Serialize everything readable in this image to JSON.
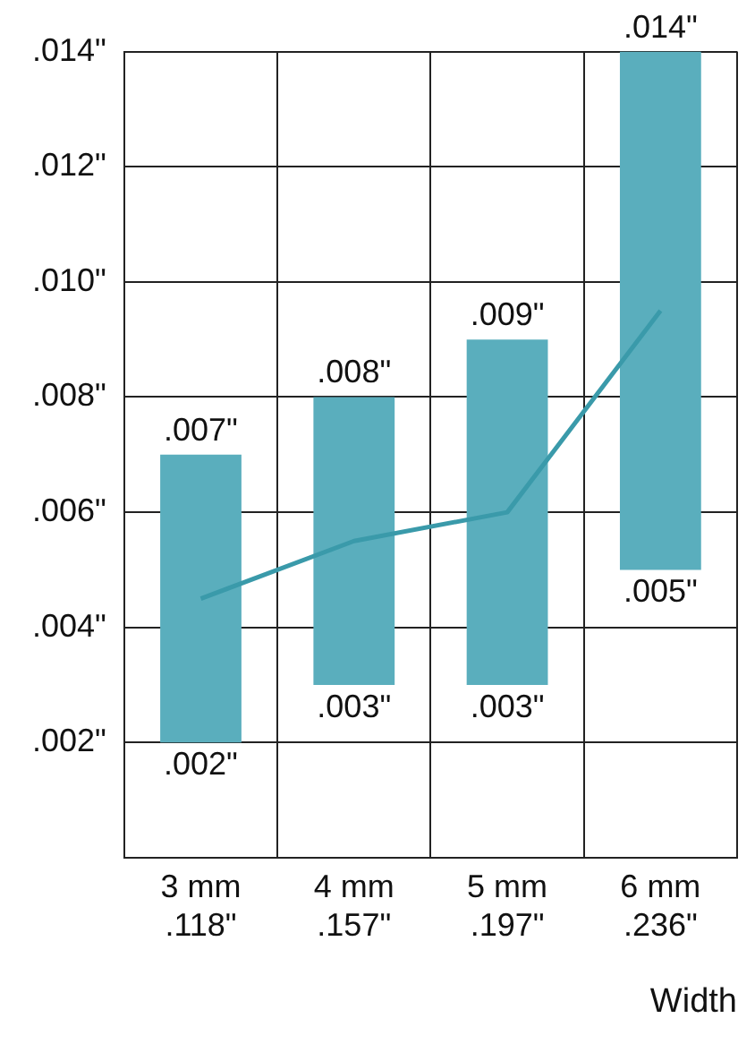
{
  "chart_data": {
    "type": "bar",
    "categories": [
      "3 mm\n.118\"",
      "4 mm\n.157\"",
      "5 mm\n.197\"",
      "6 mm\n.236\""
    ],
    "series": [
      {
        "color": "#5aaebd",
        "base": [
          0.002,
          0.003,
          0.003,
          0.005
        ],
        "values": [
          0.005,
          0.005,
          0.006,
          0.009
        ]
      },
      {
        "type": "line",
        "color": "#3a9aaa",
        "values": [
          0.0045,
          0.0055,
          0.006,
          0.0095
        ]
      }
    ],
    "ylim": [
      0,
      0.014
    ],
    "yticks": [
      {
        "value": 0,
        "label": null
      },
      {
        "value": 0.002,
        "label": ".002\""
      },
      {
        "value": 0.004,
        "label": ".004\""
      },
      {
        "value": 0.006,
        "label": ".006\""
      },
      {
        "value": 0.008,
        "label": ".008\""
      },
      {
        "value": 0.01,
        "label": ".010\""
      },
      {
        "value": 0.012,
        "label": ".012\""
      },
      {
        "value": 0.014,
        "label": ".014\""
      }
    ],
    "xlabel": "Width",
    "grid": true,
    "legend": false,
    "marker": "none",
    "annotations": [
      {
        "text": ".007\"",
        "x": "3 mm\n.118\"",
        "y": 0.007
      },
      {
        "text": ".002\"",
        "x": "3 mm\n.118\"",
        "y": 0.002
      },
      {
        "text": ".008\"",
        "x": "4 mm\n.157\"",
        "y": 0.008
      },
      {
        "text": ".003\"",
        "x": "4 mm\n.157\"",
        "y": 0.003
      },
      {
        "text": ".009\"",
        "x": "5 mm\n.197\"",
        "y": 0.009
      },
      {
        "text": ".003\"",
        "x": "5 mm\n.197\"",
        "y": 0.003
      },
      {
        "text": ".014\"",
        "x": "6 mm\n.236\"",
        "y": 0.014
      },
      {
        "text": ".005\"",
        "x": "6 mm\n.236\"",
        "y": 0.005
      }
    ]
  }
}
